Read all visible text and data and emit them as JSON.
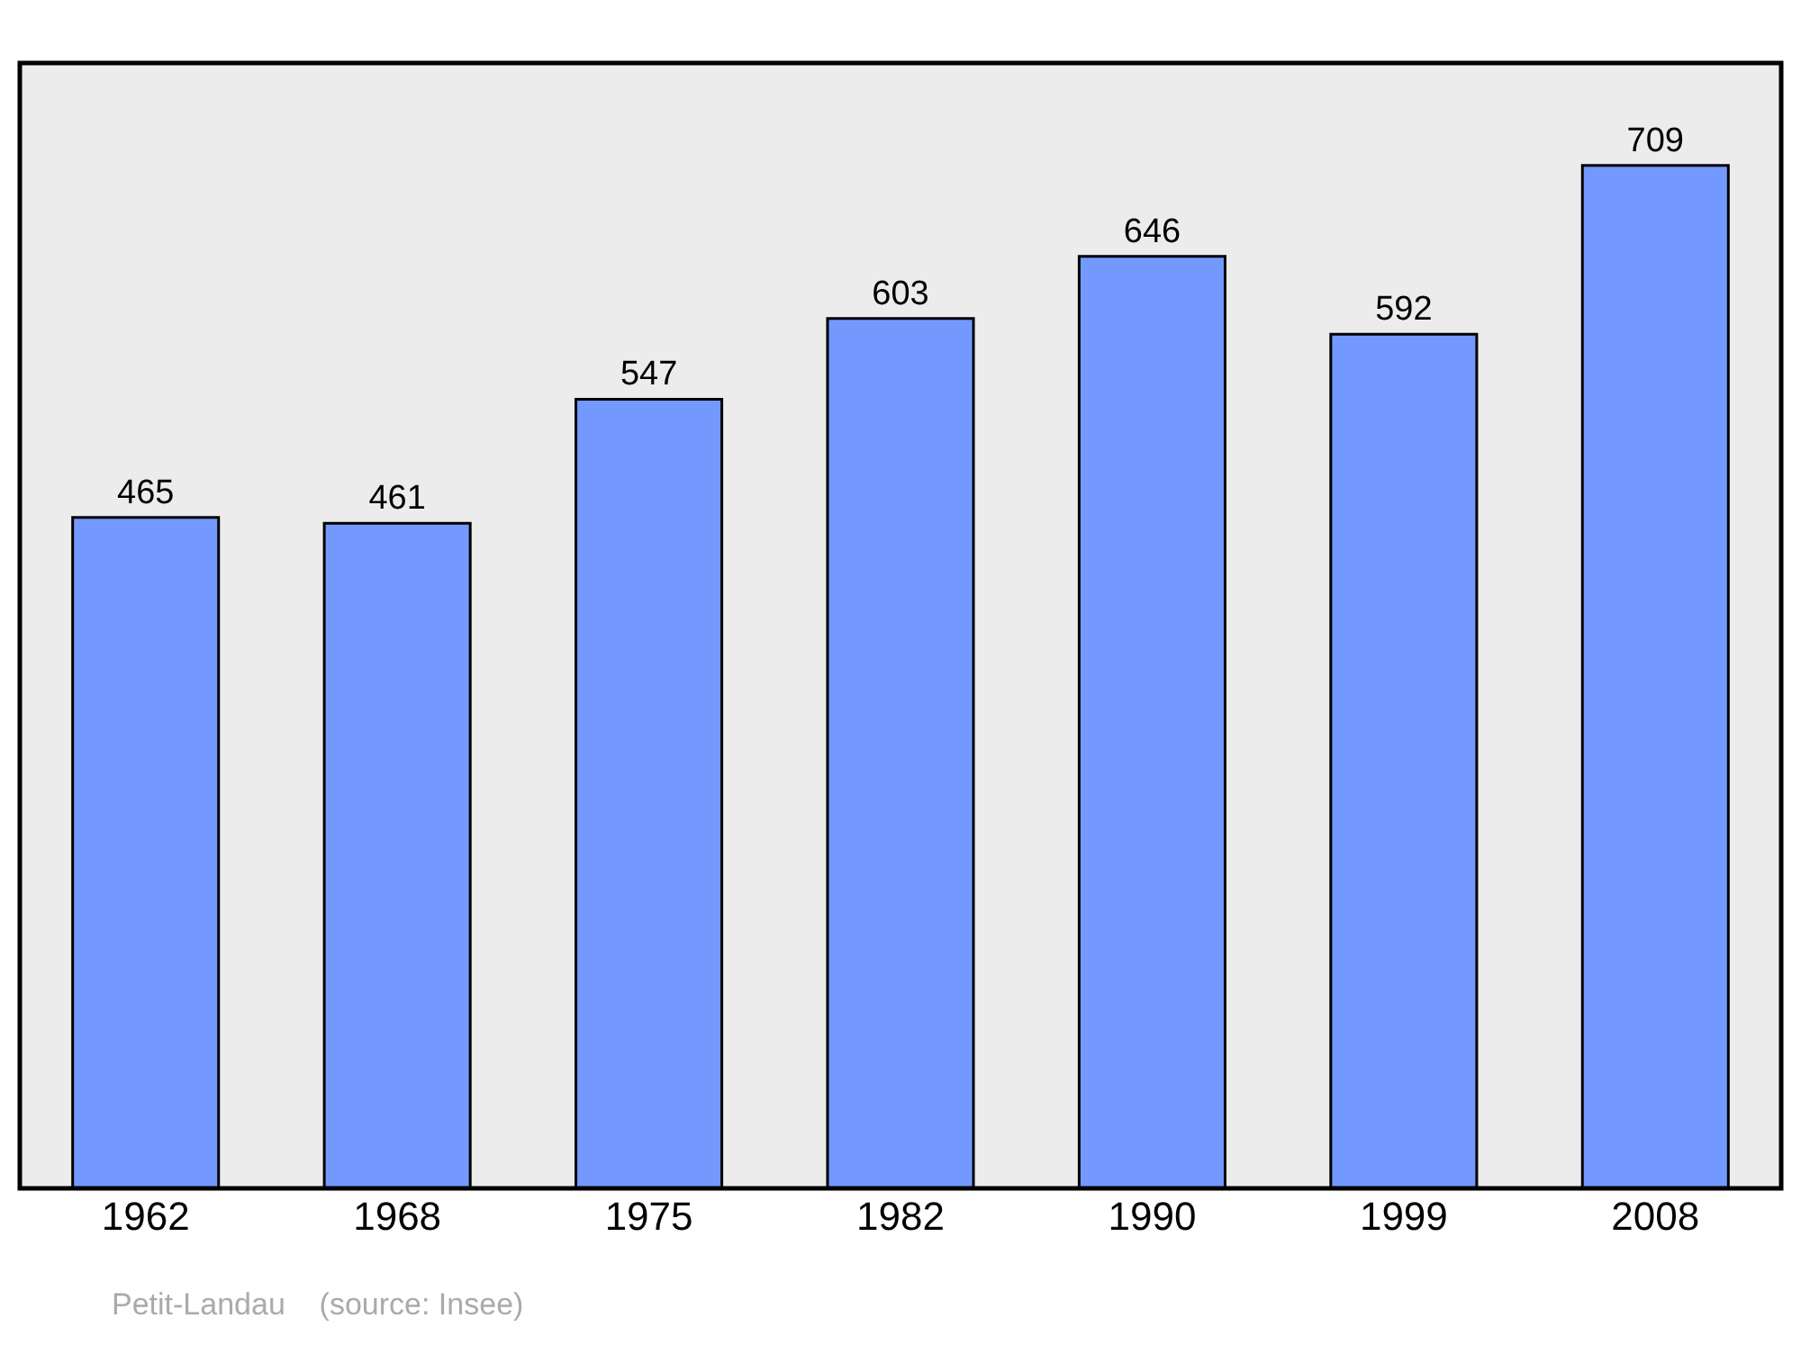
{
  "chart_data": {
    "type": "bar",
    "categories": [
      "1962",
      "1968",
      "1975",
      "1982",
      "1990",
      "1999",
      "2008"
    ],
    "values": [
      465,
      461,
      547,
      603,
      646,
      592,
      709
    ],
    "color": "#7399ff",
    "ylim": [
      0,
      780
    ],
    "data_labels": true,
    "annotations": [
      "Petit-Landau    (source: Insee)"
    ]
  }
}
